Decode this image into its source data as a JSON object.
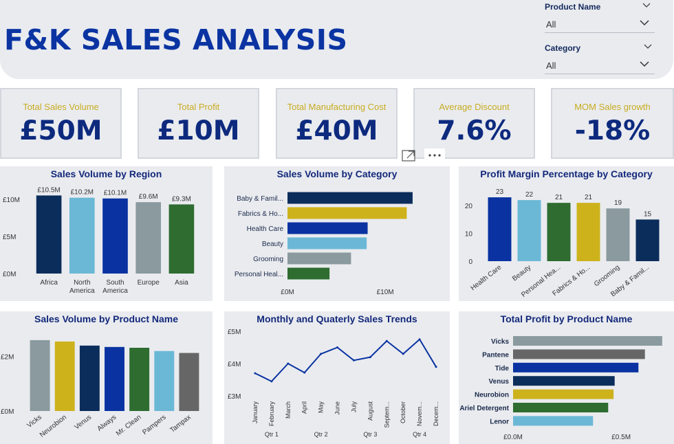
{
  "header": {
    "title": "F&K SALES ANALYSIS"
  },
  "slicers": [
    {
      "label": "Product Name",
      "value": "All"
    },
    {
      "label": "Category",
      "value": "All"
    }
  ],
  "kpis": [
    {
      "label": "Total Sales Volume",
      "value": "£50M"
    },
    {
      "label": "Total Profit",
      "value": "£10M"
    },
    {
      "label": "Total Manufacturing Cost",
      "value": "£40M"
    },
    {
      "label": "Average Discount",
      "value": "7.6%"
    },
    {
      "label": "MOM Sales growth",
      "value": "-18%"
    }
  ],
  "colors": {
    "navy": "#0b2d5b",
    "light_blue": "#6bb8d6",
    "royal_blue": "#0a33a1",
    "grey": "#8a9a9e",
    "green": "#2e6c30",
    "gold": "#cdb21c",
    "dark_grey": "#666666",
    "title_blue": "#0b34a2",
    "kpi_gold": "#c9ac1f"
  },
  "chart_data": [
    {
      "id": "region",
      "type": "bar",
      "title": "Sales Volume by Region",
      "categories": [
        "Africa",
        "North America",
        "South America",
        "Europe",
        "Asia"
      ],
      "values": [
        10.5,
        10.2,
        10.1,
        9.6,
        9.3
      ],
      "data_labels": [
        "£10.5M",
        "£10.2M",
        "£10.1M",
        "£9.6M",
        "£9.3M"
      ],
      "colors": [
        "#0b2d5b",
        "#6bb8d6",
        "#0a33a1",
        "#8a9a9e",
        "#2e6c30"
      ],
      "y_ticks": [
        0,
        5,
        10
      ],
      "y_tick_labels": [
        "£0M",
        "£5M",
        "£10M"
      ],
      "ylim": [
        0,
        11
      ]
    },
    {
      "id": "category",
      "type": "bar",
      "orientation": "horizontal",
      "title": "Sales Volume by Category",
      "categories": [
        "Baby & Famil...",
        "Fabrics & Ho...",
        "Health Care",
        "Beauty",
        "Grooming",
        "Personal Heal..."
      ],
      "values": [
        12.8,
        12.2,
        8.2,
        8.1,
        6.5,
        4.3
      ],
      "colors": [
        "#0b2d5b",
        "#cdb21c",
        "#0a33a1",
        "#6bb8d6",
        "#8a9a9e",
        "#2e6c30"
      ],
      "x_ticks": [
        0,
        10
      ],
      "x_tick_labels": [
        "£0M",
        "£10M"
      ],
      "xlim": [
        0,
        14
      ]
    },
    {
      "id": "margin",
      "type": "bar",
      "title": "Profit Margin Percentage by Category",
      "categories": [
        "Health Care",
        "Beauty",
        "Personal Hea...",
        "Fabrics & Ho...",
        "Grooming",
        "Baby & Famil..."
      ],
      "values": [
        23,
        22,
        21,
        21,
        19,
        15
      ],
      "data_labels": [
        "23",
        "22",
        "21",
        "21",
        "19",
        "15"
      ],
      "colors": [
        "#0a33a1",
        "#6bb8d6",
        "#2e6c30",
        "#cdb21c",
        "#8a9a9e",
        "#0b2d5b"
      ],
      "y_ticks": [
        0,
        10,
        20
      ],
      "y_tick_labels": [
        "0",
        "10",
        "20"
      ],
      "ylim": [
        0,
        25
      ]
    },
    {
      "id": "product",
      "type": "bar",
      "title": "Sales Volume by Product Name",
      "categories": [
        "Vicks",
        "Neurobion",
        "Venus",
        "Always",
        "Mr. Clean",
        "Pampers",
        "Tampax"
      ],
      "values": [
        2.6,
        2.55,
        2.4,
        2.35,
        2.32,
        2.2,
        2.13
      ],
      "colors": [
        "#8a9a9e",
        "#cdb21c",
        "#0b2d5b",
        "#0a33a1",
        "#2e6c30",
        "#6bb8d6",
        "#666666"
      ],
      "y_ticks": [
        0,
        2
      ],
      "y_tick_labels": [
        "£0M",
        "£2M"
      ],
      "ylim": [
        0,
        2.9
      ]
    },
    {
      "id": "trend",
      "type": "line",
      "title": "Monthly and Quaterly Sales Trends",
      "categories": [
        "January",
        "February",
        "March",
        "April",
        "May",
        "June",
        "July",
        "August",
        "Septem...",
        "October",
        "Novem...",
        "Decem..."
      ],
      "values": [
        3.7,
        3.45,
        4.0,
        3.72,
        4.3,
        4.5,
        4.1,
        4.2,
        4.7,
        4.3,
        4.75,
        3.9
      ],
      "quarters": [
        "Qtr 1",
        "Qtr 2",
        "Qtr 3",
        "Qtr 4"
      ],
      "y_ticks": [
        3,
        4,
        5
      ],
      "y_tick_labels": [
        "£3M",
        "£4M",
        "£5M"
      ],
      "ylim": [
        3,
        5
      ]
    },
    {
      "id": "profit",
      "type": "bar",
      "orientation": "horizontal",
      "title": "Total Profit by Product Name",
      "categories": [
        "Vicks",
        "Pantene",
        "Tide",
        "Venus",
        "Neurobion",
        "Ariel Detergent",
        "Lenor"
      ],
      "values": [
        0.69,
        0.61,
        0.58,
        0.47,
        0.465,
        0.44,
        0.37
      ],
      "colors": [
        "#8a9a9e",
        "#666666",
        "#0a33a1",
        "#0b2d5b",
        "#cdb21c",
        "#2e6c30",
        "#6bb8d6"
      ],
      "x_ticks": [
        0,
        0.5
      ],
      "x_tick_labels": [
        "£0.0M",
        "£0.5M"
      ],
      "xlim": [
        0,
        0.7
      ]
    }
  ]
}
